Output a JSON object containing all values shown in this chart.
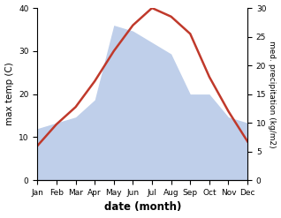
{
  "months": [
    "Jan",
    "Feb",
    "Mar",
    "Apr",
    "May",
    "Jun",
    "Jul",
    "Aug",
    "Sep",
    "Oct",
    "Nov",
    "Dec"
  ],
  "temperature": [
    8,
    13,
    17,
    23,
    30,
    36,
    40,
    38,
    34,
    24,
    16,
    9
  ],
  "precipitation": [
    9,
    10,
    11,
    14,
    27,
    26,
    24,
    22,
    15,
    15,
    11,
    10
  ],
  "temp_ylim": [
    0,
    40
  ],
  "precip_ylim": [
    0,
    30
  ],
  "temp_yticks": [
    0,
    10,
    20,
    30,
    40
  ],
  "precip_yticks": [
    0,
    5,
    10,
    15,
    20,
    25,
    30
  ],
  "temp_color": "#c0392b",
  "precip_fill_color": "#bfcfea",
  "xlabel": "date (month)",
  "ylabel_left": "max temp (C)",
  "ylabel_right": "med. precipitation (kg/m2)",
  "figsize": [
    3.18,
    2.47
  ],
  "dpi": 100
}
